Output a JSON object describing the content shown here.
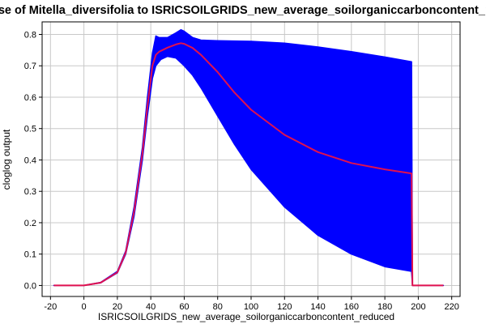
{
  "chart_data": {
    "type": "area",
    "title": "Response of Mitella_diversifolia to ISRICSOILGRIDS_new_average_soilorganiccarboncontent_reduced",
    "xlabel": "ISRICSOILGRIDS_new_average_soilorganiccarboncontent_reduced",
    "ylabel": "cloglog output",
    "xlim": [
      -25,
      225
    ],
    "ylim": [
      -0.035,
      0.84
    ],
    "xticks": [
      -20,
      0,
      20,
      40,
      60,
      80,
      100,
      120,
      140,
      160,
      180,
      200,
      220
    ],
    "yticks": [
      0.0,
      0.1,
      0.2,
      0.3,
      0.4,
      0.5,
      0.6,
      0.7,
      0.8
    ],
    "grid": true,
    "series": [
      {
        "role": "upper",
        "color": "#0000ff",
        "x": [
          -18,
          0,
          10,
          20,
          25,
          30,
          35,
          38,
          41,
          43,
          45,
          50,
          55,
          58,
          60,
          65,
          70,
          80,
          100,
          120,
          140,
          160,
          180,
          196,
          196.5,
          215
        ],
        "y": [
          0.0,
          0.0,
          0.01,
          0.045,
          0.11,
          0.25,
          0.44,
          0.6,
          0.74,
          0.795,
          0.79,
          0.79,
          0.805,
          0.815,
          0.81,
          0.79,
          0.782,
          0.78,
          0.778,
          0.772,
          0.76,
          0.745,
          0.728,
          0.713,
          0.0,
          0.0
        ]
      },
      {
        "role": "lower",
        "color": "#0000ff",
        "x": [
          -18,
          0,
          10,
          20,
          25,
          30,
          35,
          38,
          41,
          43,
          46,
          50,
          55,
          60,
          65,
          70,
          80,
          90,
          100,
          120,
          140,
          160,
          180,
          196,
          196.5,
          215
        ],
        "y": [
          0.0,
          0.0,
          0.008,
          0.04,
          0.1,
          0.22,
          0.4,
          0.54,
          0.66,
          0.7,
          0.72,
          0.73,
          0.725,
          0.7,
          0.67,
          0.63,
          0.54,
          0.45,
          0.37,
          0.25,
          0.16,
          0.1,
          0.06,
          0.045,
          0.0,
          0.0
        ]
      },
      {
        "role": "mean",
        "color": "#e0114f",
        "x": [
          -18,
          0,
          10,
          20,
          25,
          30,
          35,
          38,
          41,
          43,
          45,
          50,
          55,
          58,
          60,
          65,
          70,
          80,
          90,
          100,
          120,
          140,
          160,
          180,
          196,
          196.5,
          215
        ],
        "y": [
          0.0,
          0.0,
          0.009,
          0.042,
          0.105,
          0.235,
          0.42,
          0.57,
          0.7,
          0.735,
          0.745,
          0.758,
          0.768,
          0.772,
          0.77,
          0.757,
          0.735,
          0.68,
          0.615,
          0.56,
          0.48,
          0.425,
          0.39,
          0.37,
          0.357,
          0.0,
          0.0
        ]
      }
    ]
  }
}
